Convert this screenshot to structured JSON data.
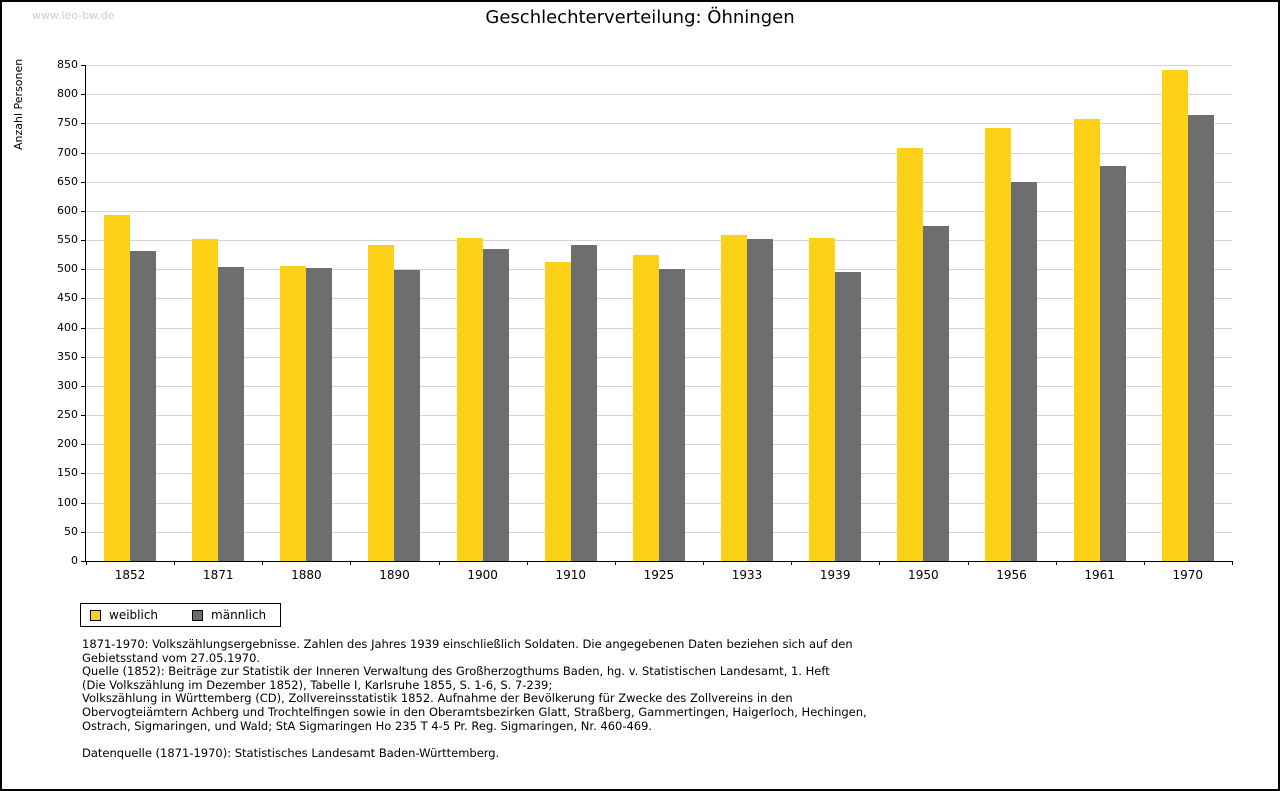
{
  "page": {
    "watermark": "www.leo-bw.de",
    "title": "Geschlechterverteilung: Öhningen"
  },
  "chart_data": {
    "type": "bar",
    "title": "Geschlechterverteilung: Öhningen",
    "xlabel": "",
    "ylabel": "Anzahl Personen",
    "ylim": [
      0,
      850
    ],
    "ytick_step": 50,
    "grid": true,
    "legend_position": "bottom-left",
    "categories": [
      "1852",
      "1871",
      "1880",
      "1890",
      "1900",
      "1910",
      "1925",
      "1933",
      "1939",
      "1950",
      "1956",
      "1961",
      "1970"
    ],
    "series": [
      {
        "name": "weiblich",
        "color": "#FCD118",
        "values": [
          593,
          551,
          505,
          541,
          554,
          512,
          525,
          559,
          554,
          708,
          742,
          757,
          841
        ]
      },
      {
        "name": "männlich",
        "color": "#6E6E6E",
        "values": [
          531,
          504,
          502,
          498,
          534,
          541,
          501,
          551,
          495,
          574,
          650,
          677,
          764
        ]
      }
    ]
  },
  "footnotes": {
    "lines": [
      "1871-1970: Volkszählungsergebnisse. Zahlen des Jahres 1939 einschließlich Soldaten. Die angegebenen Daten beziehen sich auf den",
      "Gebietsstand vom 27.05.1970.",
      "Quelle (1852): Beiträge zur Statistik der Inneren Verwaltung des Großherzogthums Baden, hg. v. Statistischen Landesamt, 1. Heft",
      "(Die Volkszählung im Dezember 1852), Tabelle I, Karlsruhe 1855, S. 1-6, S. 7-239;",
      "Volkszählung in Württemberg (CD), Zollvereinsstatistik 1852. Aufnahme der Bevölkerung für Zwecke des Zollvereins in den",
      "Obervogteiämtern Achberg und Trochtelfingen sowie in den Oberamtsbezirken Glatt, Straßberg, Gammertingen, Haigerloch, Hechingen,",
      "Ostrach, Sigmaringen, und Wald; StA Sigmaringen Ho 235 T 4-5 Pr. Reg. Sigmaringen, Nr. 460-469.",
      "",
      "Datenquelle (1871-1970): Statistisches Landesamt Baden-Württemberg."
    ]
  }
}
